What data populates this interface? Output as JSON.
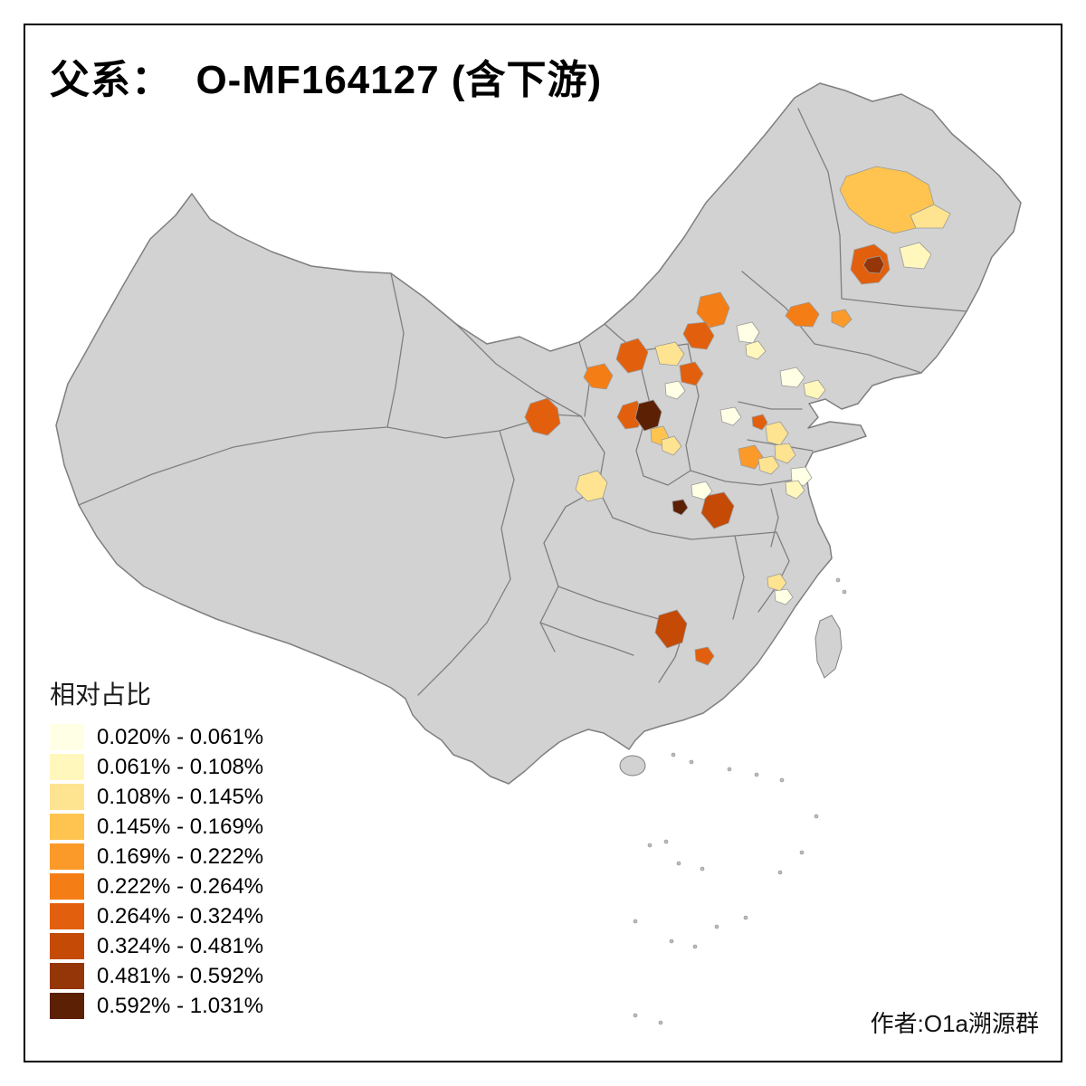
{
  "title": "父系：  O-MF164127 (含下游)",
  "legend": {
    "title": "相对占比",
    "classes": [
      {
        "label": "0.020% - 0.061%",
        "color": "#FFFFE5"
      },
      {
        "label": "0.061% - 0.108%",
        "color": "#FFF7BC"
      },
      {
        "label": "0.108% - 0.145%",
        "color": "#FEE391"
      },
      {
        "label": "0.145% - 0.169%",
        "color": "#FEC44F"
      },
      {
        "label": "0.169% - 0.222%",
        "color": "#FB9A29"
      },
      {
        "label": "0.222% - 0.264%",
        "color": "#F57D15"
      },
      {
        "label": "0.264% - 0.324%",
        "color": "#E2600D"
      },
      {
        "label": "0.324% - 0.481%",
        "color": "#C44A06"
      },
      {
        "label": "0.481% - 0.592%",
        "color": "#943608"
      },
      {
        "label": "0.592% - 1.031%",
        "color": "#5C2005"
      }
    ]
  },
  "attribution": "作者:O1a溯源群",
  "map": {
    "land_fill": "#D2D2D2",
    "border_color": "#7F7F7F",
    "background": "#FFFFFF",
    "frame_color": "#000000"
  }
}
